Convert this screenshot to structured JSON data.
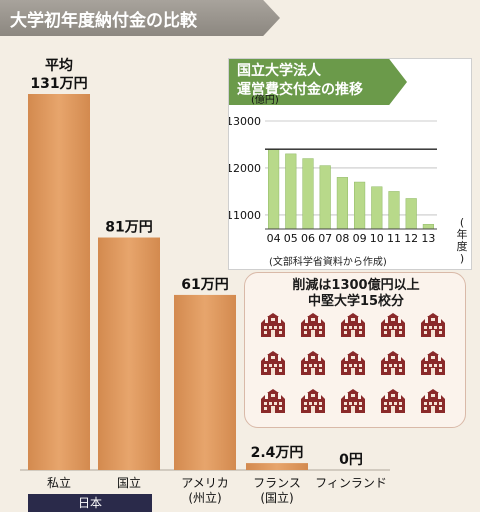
{
  "title": "大学初年度納付金の比較",
  "chart_data": [
    {
      "type": "bar",
      "title": "大学初年度納付金の比較",
      "categories": [
        "私立",
        "国立",
        "アメリカ\n(州立)",
        "フランス\n(国立)",
        "フィンランド"
      ],
      "values": [
        131,
        81,
        61,
        2.4,
        0
      ],
      "value_labels": [
        "131万円",
        "81万円",
        "61万円",
        "2.4万円",
        "0円"
      ],
      "first_prefix": "平均",
      "unit": "万円",
      "group_label": "日本",
      "colors": {
        "bar": "#e7a56c",
        "bar_dark": "#d38a4f"
      }
    },
    {
      "type": "bar",
      "title": "国立大学法人\n運営費交付金の推移",
      "ylabel": "(億円)",
      "xlabel": "(年度)",
      "categories": [
        "04",
        "05",
        "06",
        "07",
        "08",
        "09",
        "10",
        "11",
        "12",
        "13"
      ],
      "values": [
        12400,
        12300,
        12200,
        12050,
        11800,
        11700,
        11600,
        11500,
        11350,
        10800
      ],
      "ylim": [
        10700,
        13000
      ],
      "yticks": [
        11000,
        12000,
        13000
      ],
      "reference_line": 12400,
      "source": "(文部科学省資料から作成)",
      "colors": {
        "bar": "#b8d98a",
        "ref": "#222222"
      }
    }
  ],
  "cut_box": {
    "text": "削減は1300億円以上\n中堅大学15校分",
    "icon_count": 15,
    "icon_name": "university-building-icon",
    "icon_color": "#8a2a2a"
  }
}
